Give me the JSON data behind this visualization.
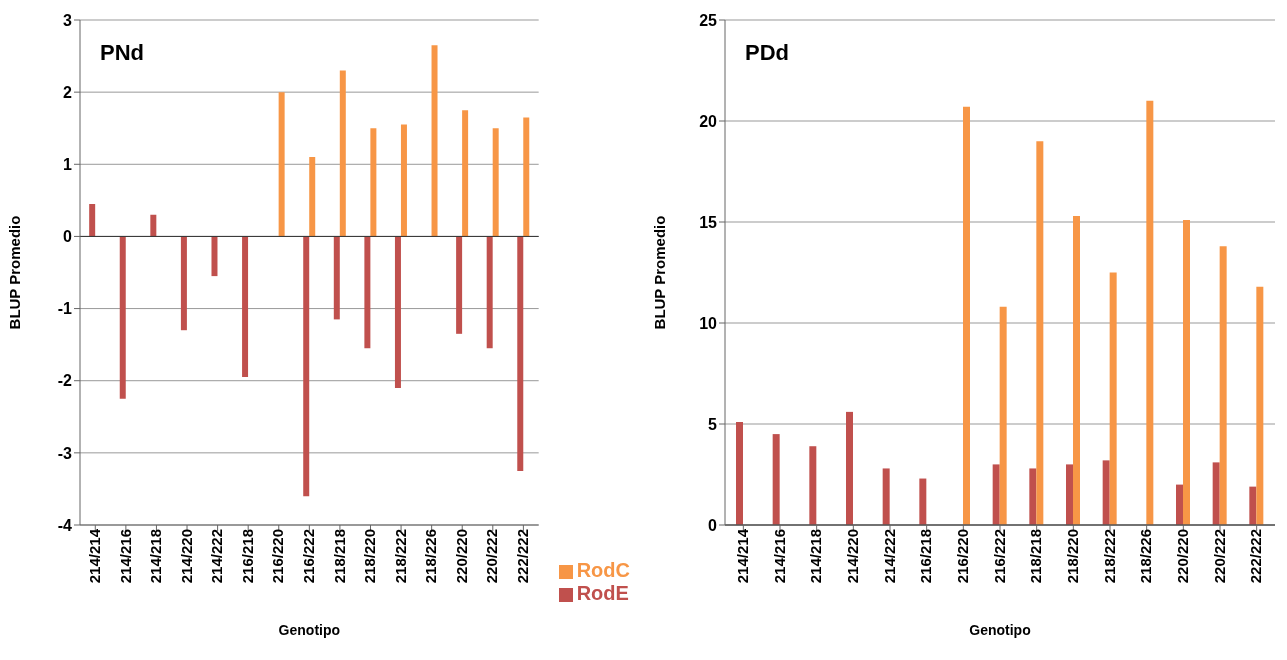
{
  "chart_data": [
    {
      "type": "bar",
      "title": "PNd",
      "xlabel": "Genotipo",
      "ylabel": "BLUP Promedio",
      "categories": [
        "214/214",
        "214/216",
        "214/218",
        "214/220",
        "214/222",
        "216/218",
        "216/220",
        "216/222",
        "218/218",
        "218/220",
        "218/222",
        "218/226",
        "220/220",
        "220/222",
        "222/222"
      ],
      "series": [
        {
          "name": "RodE",
          "color": "#c0504d",
          "values": [
            0.45,
            -2.25,
            0.3,
            -1.3,
            -0.55,
            -1.95,
            null,
            -3.6,
            -1.15,
            -1.55,
            -2.1,
            null,
            -1.35,
            -1.55,
            -3.25
          ]
        },
        {
          "name": "RodC",
          "color": "#f79646",
          "values": [
            null,
            null,
            null,
            null,
            null,
            null,
            2.0,
            1.1,
            2.3,
            1.5,
            1.55,
            2.65,
            1.75,
            1.5,
            1.65
          ]
        }
      ],
      "ylim": [
        -4,
        3
      ],
      "yticks": [
        -4,
        -3,
        -2,
        -1,
        0,
        1,
        2,
        3
      ],
      "grid": "y",
      "legend": "bottom right"
    },
    {
      "type": "bar",
      "title": "PDd",
      "xlabel": "Genotipo",
      "ylabel": "BLUP Promedio",
      "categories": [
        "214/214",
        "214/216",
        "214/218",
        "214/220",
        "214/222",
        "216/218",
        "216/220",
        "216/222",
        "218/218",
        "218/220",
        "218/222",
        "218/226",
        "220/220",
        "220/222",
        "222/222"
      ],
      "series": [
        {
          "color": "#c0504d",
          "values": [
            5.1,
            4.5,
            3.9,
            5.6,
            2.8,
            2.3,
            null,
            3.0,
            2.8,
            3.0,
            3.2,
            null,
            2.0,
            3.1,
            1.9
          ]
        },
        {
          "color": "#f79646",
          "values": [
            null,
            null,
            null,
            null,
            null,
            null,
            20.7,
            10.8,
            19.0,
            15.3,
            12.5,
            21.0,
            15.1,
            13.8,
            11.8
          ]
        }
      ],
      "ylim": [
        0,
        25
      ],
      "yticks": [
        0,
        5,
        10,
        15,
        20,
        25
      ],
      "grid": "y"
    }
  ]
}
